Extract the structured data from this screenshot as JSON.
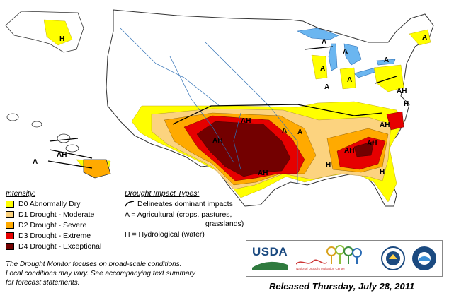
{
  "map": {
    "region_labels": [
      "A",
      "A",
      "A",
      "A",
      "A",
      "A",
      "A",
      "A",
      "A",
      "A",
      "AH",
      "AH",
      "AH",
      "AH",
      "AH",
      "AH",
      "AH",
      "AH",
      "H",
      "H",
      "H",
      "H"
    ]
  },
  "legend": {
    "intensity_title": "Intensity:",
    "items": [
      {
        "code": "D0",
        "label": "D0 Abnormally Dry",
        "color": "#ffff00"
      },
      {
        "code": "D1",
        "label": "D1 Drought - Moderate",
        "color": "#fcd37f"
      },
      {
        "code": "D2",
        "label": "D2 Drought - Severe",
        "color": "#ffaa00"
      },
      {
        "code": "D3",
        "label": "D3 Drought - Extreme",
        "color": "#e60000"
      },
      {
        "code": "D4",
        "label": "D4 Drought - Exceptional",
        "color": "#730000"
      }
    ]
  },
  "impacts": {
    "title": "Drought Impact Types:",
    "delineates": "Delineates dominant impacts",
    "agricultural": "A = Agricultural (crops, pastures,",
    "agricultural_cont": "grasslands)",
    "hydrological": "H = Hydrological (water)"
  },
  "footnote": {
    "line1": "The Drought Monitor focuses on broad-scale conditions.",
    "line2": "Local conditions may vary. See accompanying text summary",
    "line3": "for forecast statements."
  },
  "release": "Released Thursday, July 28, 2011",
  "logos": {
    "usda": "USDA",
    "ndmc": "National Drought Mitigation Center"
  }
}
